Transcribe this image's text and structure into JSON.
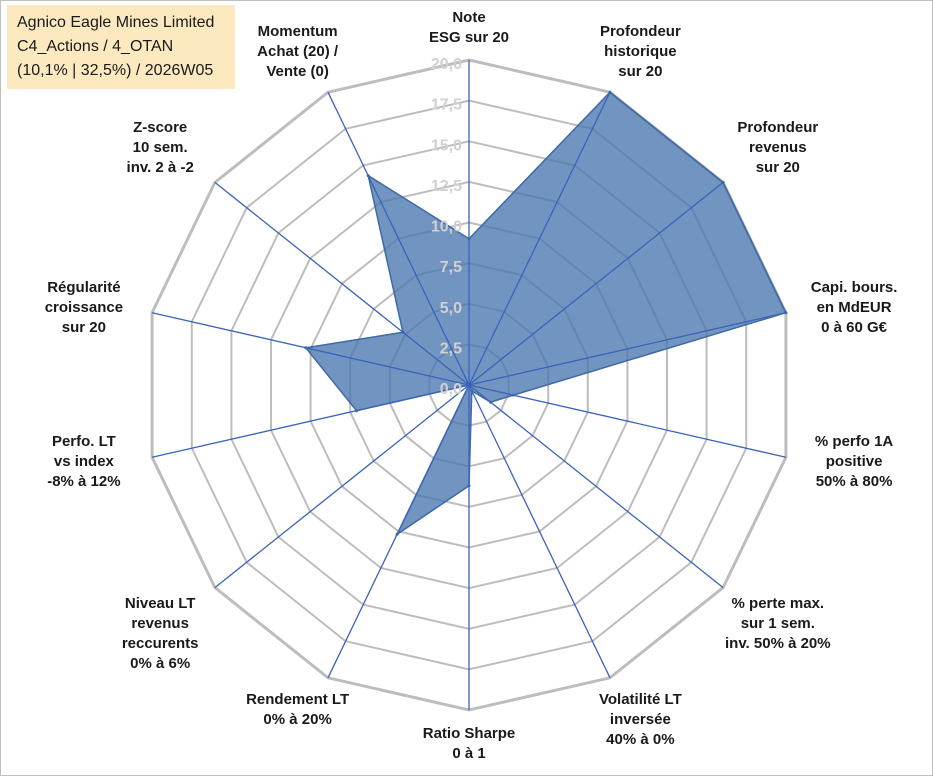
{
  "info": {
    "line1": "Agnico Eagle Mines Limited",
    "line2": "C4_Actions / 4_OTAN",
    "line3": "(10,1% | 32,5%) / 2026W05"
  },
  "chart_data": {
    "type": "radar",
    "title": "Agnico Eagle Mines Limited",
    "rmin": 0,
    "rmax": 20,
    "ticks": [
      "0,0",
      "2,5",
      "5,0",
      "7,5",
      "10,0",
      "12,5",
      "15,0",
      "17,5",
      "20,0"
    ],
    "tick_values": [
      0,
      2.5,
      5,
      7.5,
      10,
      12.5,
      15,
      17.5,
      20
    ],
    "axes": [
      "Note\nESG sur 20",
      "Profondeur\nhistorique\nsur 20",
      "Profondeur\nrevenus\nsur 20",
      "Capi. bours.\nen MdEUR\n0 à 60 G€",
      "% perfo 1A\npositive\n50% à 80%",
      "% perte max.\nsur 1 sem.\ninv. 50% à 20%",
      "Volatilité LT\ninversée\n40% à 0%",
      "Ratio Sharpe\n0 à 1",
      "Rendement LT\n0% à 20%",
      "Niveau LT\nrevenus\nreccurents\n0% à 6%",
      "Perfo. LT\nvs index\n-8% à 12%",
      "Régularité\ncroissance\nsur 20",
      "Z-score\n10 sem.\ninv. 2 à -2",
      "Momentum\nAchat (20) /\nVente (0)"
    ],
    "series": [
      {
        "name": "Agnico Eagle Mines Limited",
        "color": "#4a76b0",
        "values": [
          9.0,
          20.0,
          20.0,
          20.0,
          2.8,
          1.7,
          0.4,
          6.2,
          10.2,
          0.0,
          7.1,
          10.3,
          5.2,
          14.3
        ]
      }
    ]
  }
}
